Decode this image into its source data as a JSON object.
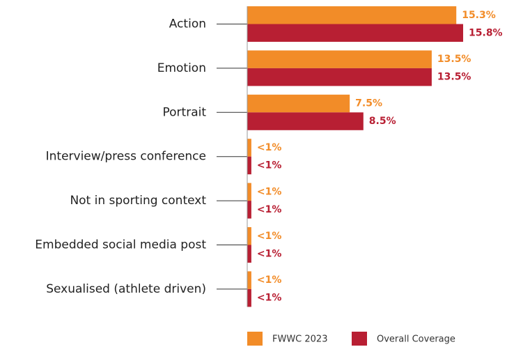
{
  "chart_data": {
    "type": "hbar",
    "categories": [
      "Action",
      "Emotion",
      "Portrait",
      "Interview/press conference",
      "Not in sporting context",
      "Embedded social media post",
      "Sexualised (athlete driven)"
    ],
    "series": [
      {
        "name": "FWWC 2023",
        "color": "#f28c28",
        "values": [
          15.3,
          13.5,
          7.5,
          0.3,
          0.3,
          0.3,
          0.3
        ],
        "value_labels": [
          "15.3%",
          "13.5%",
          "7.5%",
          "<1%",
          "<1%",
          "<1%",
          "<1%"
        ]
      },
      {
        "name": "Overall Coverage",
        "color": "#b81f33",
        "values": [
          15.8,
          13.5,
          8.5,
          0.3,
          0.3,
          0.3,
          0.3
        ],
        "value_labels": [
          "15.8%",
          "13.5%",
          "8.5%",
          "<1%",
          "<1%",
          "<1%",
          "<1%"
        ]
      }
    ],
    "xlim": [
      0,
      18.5
    ],
    "legend": "bottom"
  }
}
